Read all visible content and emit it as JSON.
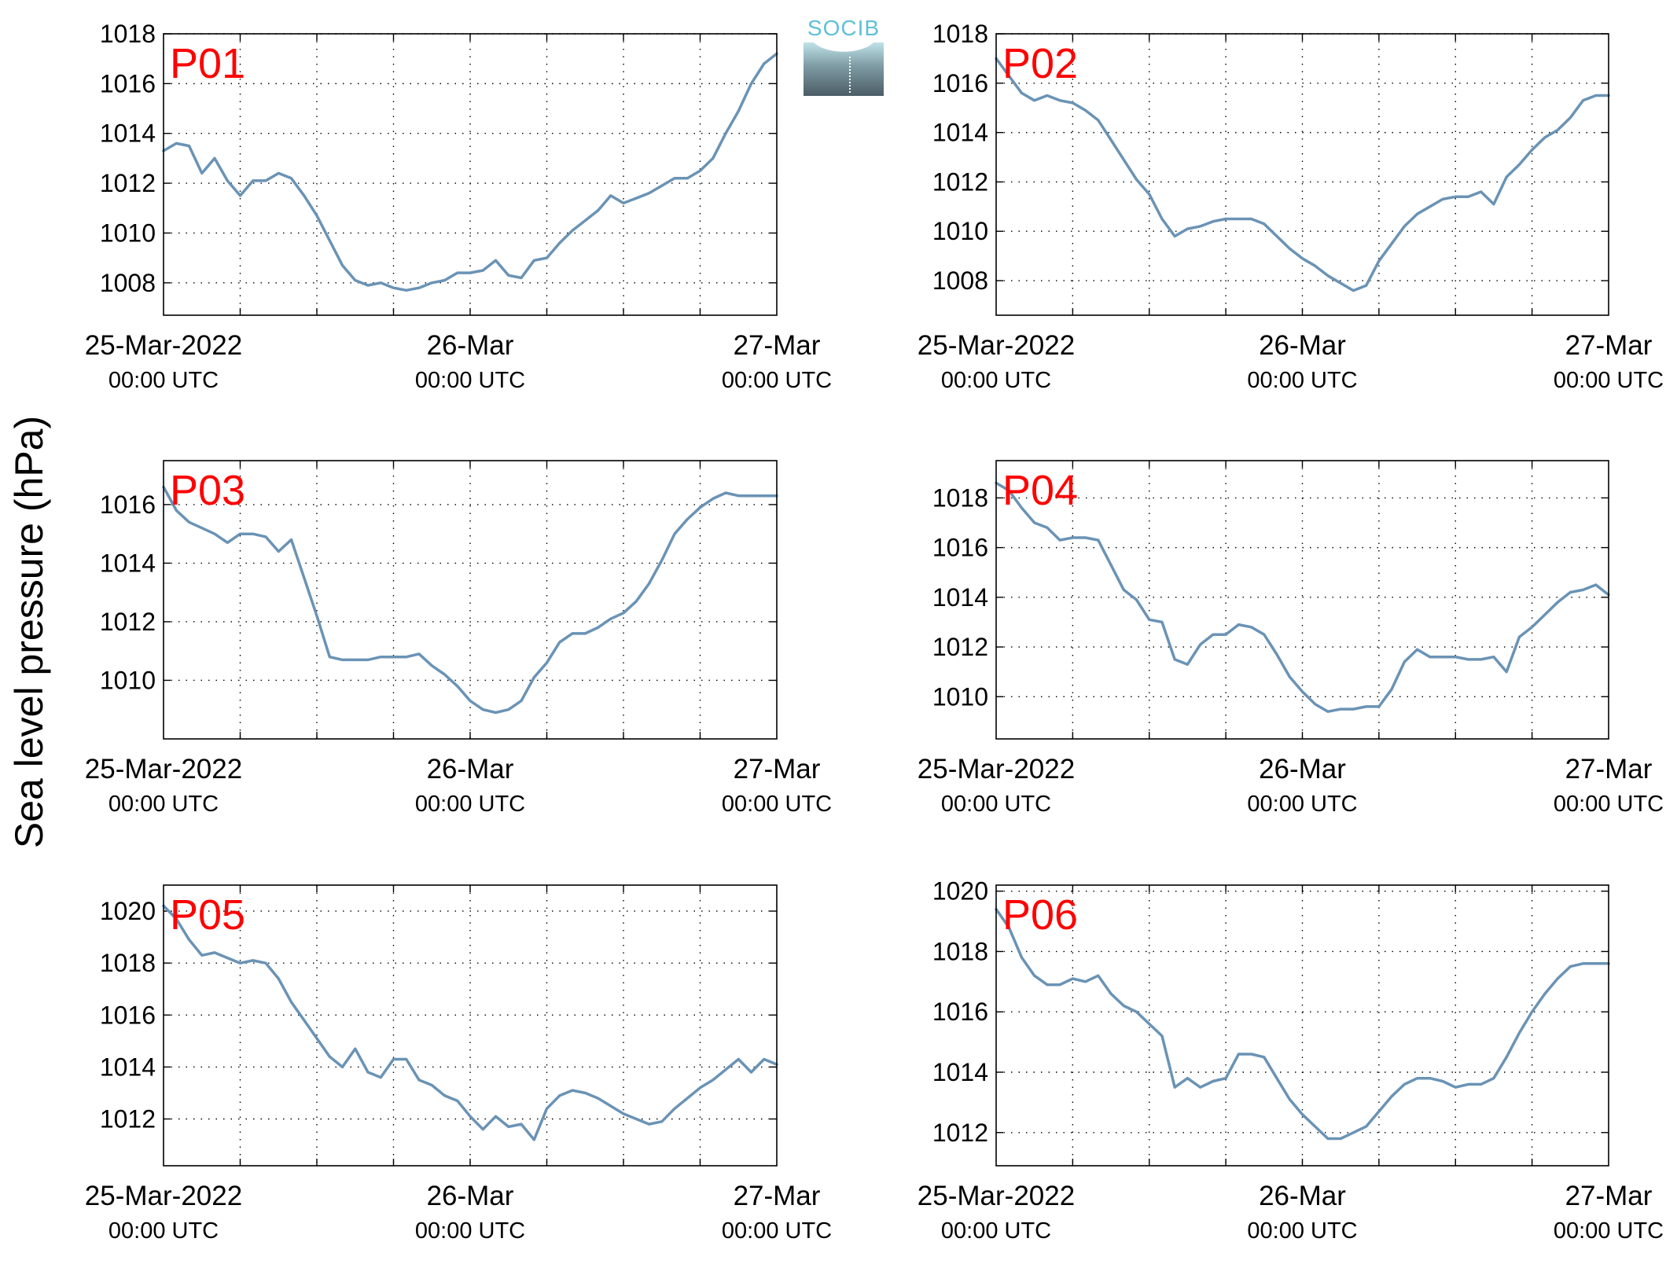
{
  "figure": {
    "ylabel": "Sea level pressure (hPa)",
    "logo_text": "SOCIB",
    "line_color": "#6a93b5",
    "panel_label_color": "#ff0000",
    "x_tick_labels": [
      {
        "date": "25-Mar-2022",
        "time": "00:00 UTC"
      },
      {
        "date": "26-Mar",
        "time": "00:00 UTC"
      },
      {
        "date": "27-Mar",
        "time": "00:00 UTC"
      }
    ]
  },
  "chart_data": [
    {
      "type": "line",
      "title": "P01",
      "xlabel": "",
      "ylabel": "Sea level pressure (hPa)",
      "x_unit": "hours since 25-Mar-2022 00:00 UTC",
      "xlim": [
        0,
        48
      ],
      "ylim": [
        1006.7,
        1018.0
      ],
      "yticks": [
        1008,
        1010,
        1012,
        1014,
        1016,
        1018
      ],
      "grid": true,
      "x": [
        0,
        1,
        2,
        3,
        4,
        5,
        6,
        7,
        8,
        9,
        10,
        11,
        12,
        13,
        14,
        15,
        16,
        17,
        18,
        19,
        20,
        21,
        22,
        23,
        24,
        25,
        26,
        27,
        28,
        29,
        30,
        31,
        32,
        33,
        34,
        35,
        36,
        37,
        38,
        39,
        40,
        41,
        42,
        43,
        44,
        45,
        46,
        47,
        48
      ],
      "values": [
        1013.3,
        1013.6,
        1013.5,
        1012.4,
        1013.0,
        1012.1,
        1011.5,
        1012.1,
        1012.1,
        1012.4,
        1012.2,
        1011.5,
        1010.7,
        1009.7,
        1008.7,
        1008.1,
        1007.9,
        1008.0,
        1007.8,
        1007.7,
        1007.8,
        1008.0,
        1008.1,
        1008.4,
        1008.4,
        1008.5,
        1008.9,
        1008.3,
        1008.2,
        1008.9,
        1009.0,
        1009.6,
        1010.1,
        1010.5,
        1010.9,
        1011.5,
        1011.2,
        1011.4,
        1011.6,
        1011.9,
        1012.2,
        1012.2,
        1012.5,
        1013.0,
        1014.0,
        1014.9,
        1016.0,
        1016.8,
        1017.2
      ]
    },
    {
      "type": "line",
      "title": "P02",
      "xlabel": "",
      "ylabel": "Sea level pressure (hPa)",
      "x_unit": "hours since 25-Mar-2022 00:00 UTC",
      "xlim": [
        0,
        48
      ],
      "ylim": [
        1006.6,
        1018.0
      ],
      "yticks": [
        1008,
        1010,
        1012,
        1014,
        1016,
        1018
      ],
      "grid": true,
      "x": [
        0,
        1,
        2,
        3,
        4,
        5,
        6,
        7,
        8,
        9,
        10,
        11,
        12,
        13,
        14,
        15,
        16,
        17,
        18,
        19,
        20,
        21,
        22,
        23,
        24,
        25,
        26,
        27,
        28,
        29,
        30,
        31,
        32,
        33,
        34,
        35,
        36,
        37,
        38,
        39,
        40,
        41,
        42,
        43,
        44,
        45,
        46,
        47,
        48
      ],
      "values": [
        1017.0,
        1016.3,
        1015.6,
        1015.3,
        1015.5,
        1015.3,
        1015.2,
        1014.9,
        1014.5,
        1013.7,
        1012.9,
        1012.1,
        1011.5,
        1010.5,
        1009.8,
        1010.1,
        1010.2,
        1010.4,
        1010.5,
        1010.5,
        1010.5,
        1010.3,
        1009.8,
        1009.3,
        1008.9,
        1008.6,
        1008.2,
        1007.9,
        1007.6,
        1007.8,
        1008.8,
        1009.5,
        1010.2,
        1010.7,
        1011.0,
        1011.3,
        1011.4,
        1011.4,
        1011.6,
        1011.1,
        1012.2,
        1012.7,
        1013.3,
        1013.8,
        1014.1,
        1014.6,
        1015.3,
        1015.5,
        1015.5
      ]
    },
    {
      "type": "line",
      "title": "P03",
      "xlabel": "",
      "ylabel": "Sea level pressure (hPa)",
      "x_unit": "hours since 25-Mar-2022 00:00 UTC",
      "xlim": [
        0,
        48
      ],
      "ylim": [
        1008.0,
        1017.5
      ],
      "yticks": [
        1010,
        1012,
        1014,
        1016
      ],
      "grid": true,
      "x": [
        0,
        1,
        2,
        3,
        4,
        5,
        6,
        7,
        8,
        9,
        10,
        11,
        12,
        13,
        14,
        15,
        16,
        17,
        18,
        19,
        20,
        21,
        22,
        23,
        24,
        25,
        26,
        27,
        28,
        29,
        30,
        31,
        32,
        33,
        34,
        35,
        36,
        37,
        38,
        39,
        40,
        41,
        42,
        43,
        44,
        45,
        46,
        47,
        48
      ],
      "values": [
        1016.6,
        1015.8,
        1015.4,
        1015.2,
        1015.0,
        1014.7,
        1015.0,
        1015.0,
        1014.9,
        1014.4,
        1014.8,
        1013.5,
        1012.2,
        1010.8,
        1010.7,
        1010.7,
        1010.7,
        1010.8,
        1010.8,
        1010.8,
        1010.9,
        1010.5,
        1010.2,
        1009.8,
        1009.3,
        1009.0,
        1008.9,
        1009.0,
        1009.3,
        1010.1,
        1010.6,
        1011.3,
        1011.6,
        1011.6,
        1011.8,
        1012.1,
        1012.3,
        1012.7,
        1013.3,
        1014.1,
        1015.0,
        1015.5,
        1015.9,
        1016.2,
        1016.4,
        1016.3,
        1016.3,
        1016.3,
        1016.3
      ]
    },
    {
      "type": "line",
      "title": "P04",
      "xlabel": "",
      "ylabel": "Sea level pressure (hPa)",
      "x_unit": "hours since 25-Mar-2022 00:00 UTC",
      "xlim": [
        0,
        48
      ],
      "ylim": [
        1008.3,
        1019.5
      ],
      "yticks": [
        1010,
        1012,
        1014,
        1016,
        1018
      ],
      "grid": true,
      "x": [
        0,
        1,
        2,
        3,
        4,
        5,
        6,
        7,
        8,
        9,
        10,
        11,
        12,
        13,
        14,
        15,
        16,
        17,
        18,
        19,
        20,
        21,
        22,
        23,
        24,
        25,
        26,
        27,
        28,
        29,
        30,
        31,
        32,
        33,
        34,
        35,
        36,
        37,
        38,
        39,
        40,
        41,
        42,
        43,
        44,
        45,
        46,
        47,
        48
      ],
      "values": [
        1018.6,
        1018.3,
        1017.6,
        1017.0,
        1016.8,
        1016.3,
        1016.4,
        1016.4,
        1016.3,
        1015.3,
        1014.3,
        1013.9,
        1013.1,
        1013.0,
        1011.5,
        1011.3,
        1012.1,
        1012.5,
        1012.5,
        1012.9,
        1012.8,
        1012.5,
        1011.7,
        1010.8,
        1010.2,
        1009.7,
        1009.4,
        1009.5,
        1009.5,
        1009.6,
        1009.6,
        1010.3,
        1011.4,
        1011.9,
        1011.6,
        1011.6,
        1011.6,
        1011.5,
        1011.5,
        1011.6,
        1011.0,
        1012.4,
        1012.8,
        1013.3,
        1013.8,
        1014.2,
        1014.3,
        1014.5,
        1014.1
      ]
    },
    {
      "type": "line",
      "title": "P05",
      "xlabel": "",
      "ylabel": "Sea level pressure (hPa)",
      "x_unit": "hours since 25-Mar-2022 00:00 UTC",
      "xlim": [
        0,
        48
      ],
      "ylim": [
        1010.2,
        1021.0
      ],
      "yticks": [
        1012,
        1014,
        1016,
        1018,
        1020
      ],
      "grid": true,
      "x": [
        0,
        1,
        2,
        3,
        4,
        5,
        6,
        7,
        8,
        9,
        10,
        11,
        12,
        13,
        14,
        15,
        16,
        17,
        18,
        19,
        20,
        21,
        22,
        23,
        24,
        25,
        26,
        27,
        28,
        29,
        30,
        31,
        32,
        33,
        34,
        35,
        36,
        37,
        38,
        39,
        40,
        41,
        42,
        43,
        44,
        45,
        46,
        47,
        48
      ],
      "values": [
        1020.2,
        1019.7,
        1018.9,
        1018.3,
        1018.4,
        1018.2,
        1018.0,
        1018.1,
        1018.0,
        1017.4,
        1016.5,
        1015.8,
        1015.1,
        1014.4,
        1014.0,
        1014.7,
        1013.8,
        1013.6,
        1014.3,
        1014.3,
        1013.5,
        1013.3,
        1012.9,
        1012.7,
        1012.1,
        1011.6,
        1012.1,
        1011.7,
        1011.8,
        1011.2,
        1012.4,
        1012.9,
        1013.1,
        1013.0,
        1012.8,
        1012.5,
        1012.2,
        1012.0,
        1011.8,
        1011.9,
        1012.4,
        1012.8,
        1013.2,
        1013.5,
        1013.9,
        1014.3,
        1013.8,
        1014.3,
        1014.1
      ]
    },
    {
      "type": "line",
      "title": "P06",
      "xlabel": "",
      "ylabel": "Sea level pressure (hPa)",
      "x_unit": "hours since 25-Mar-2022 00:00 UTC",
      "xlim": [
        0,
        48
      ],
      "ylim": [
        1010.9,
        1020.2
      ],
      "yticks": [
        1012,
        1014,
        1016,
        1018,
        1020
      ],
      "grid": true,
      "x": [
        0,
        1,
        2,
        3,
        4,
        5,
        6,
        7,
        8,
        9,
        10,
        11,
        12,
        13,
        14,
        15,
        16,
        17,
        18,
        19,
        20,
        21,
        22,
        23,
        24,
        25,
        26,
        27,
        28,
        29,
        30,
        31,
        32,
        33,
        34,
        35,
        36,
        37,
        38,
        39,
        40,
        41,
        42,
        43,
        44,
        45,
        46,
        47,
        48
      ],
      "values": [
        1019.4,
        1018.8,
        1017.8,
        1017.2,
        1016.9,
        1016.9,
        1017.1,
        1017.0,
        1017.2,
        1016.6,
        1016.2,
        1016.0,
        1015.6,
        1015.2,
        1013.5,
        1013.8,
        1013.5,
        1013.7,
        1013.8,
        1014.6,
        1014.6,
        1014.5,
        1013.8,
        1013.1,
        1012.6,
        1012.2,
        1011.8,
        1011.8,
        1012.0,
        1012.2,
        1012.7,
        1013.2,
        1013.6,
        1013.8,
        1013.8,
        1013.7,
        1013.5,
        1013.6,
        1013.6,
        1013.8,
        1014.5,
        1015.3,
        1016.0,
        1016.6,
        1017.1,
        1017.5,
        1017.6,
        1017.6,
        1017.6
      ]
    }
  ]
}
